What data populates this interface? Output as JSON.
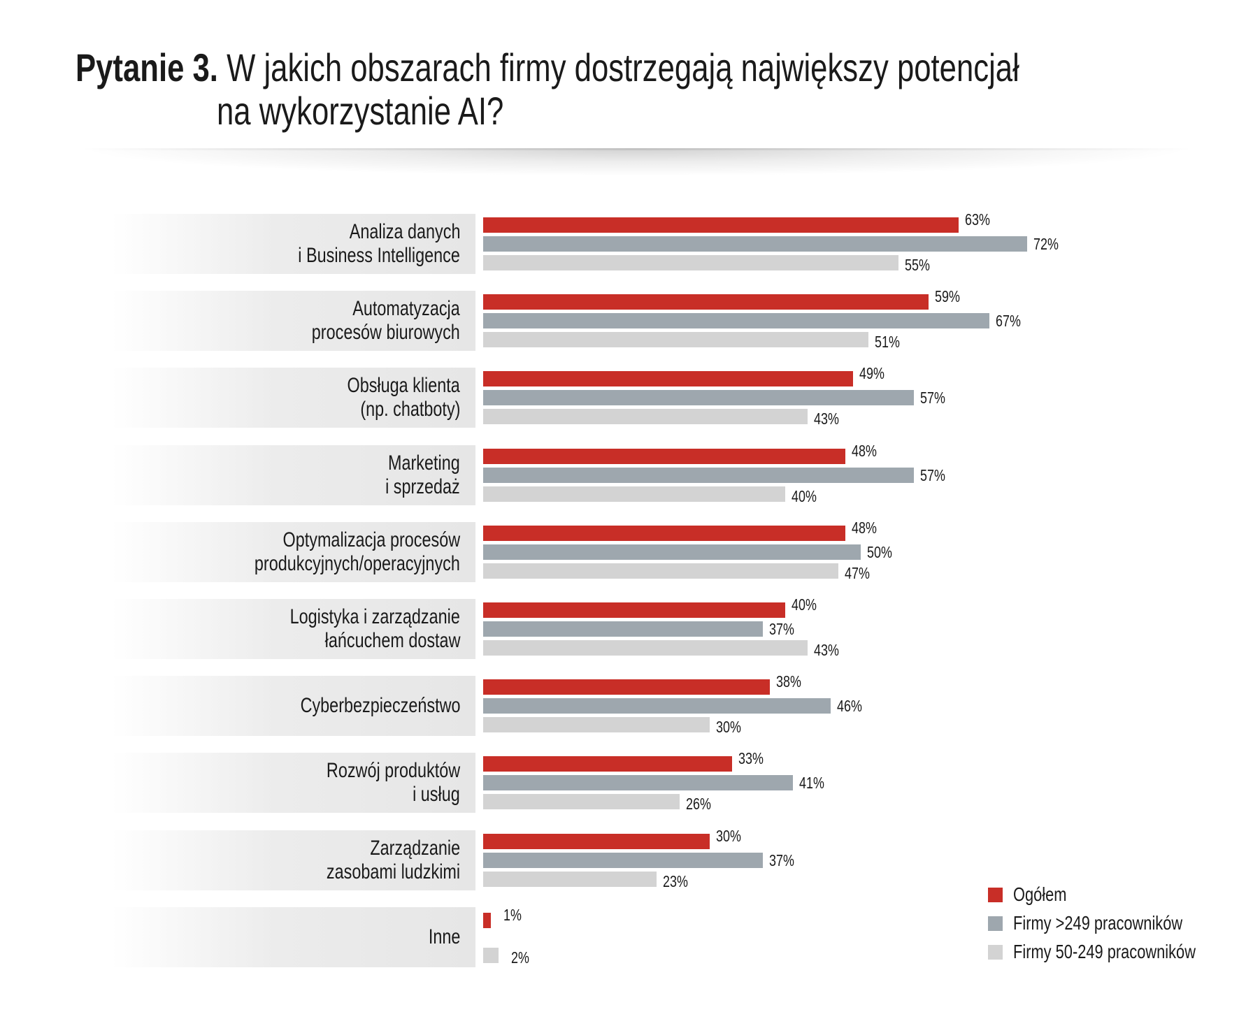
{
  "title": {
    "prefix": "Pytanie 3.",
    "line1": "W jakich obszarach firmy dostrzegają największy potencjał",
    "line2": "na wykorzystanie AI?"
  },
  "colors": {
    "ogolem": "#c82e27",
    "large": "#9ea7ae",
    "medium": "#d3d3d3"
  },
  "chart_data": {
    "type": "bar",
    "orientation": "horizontal",
    "title": "Pytanie 3. W jakich obszarach firmy dostrzegają największy potencjał na wykorzystanie AI?",
    "categories": [
      [
        "Analiza danych",
        "i Business Intelligence"
      ],
      [
        "Automatyzacja",
        "procesów biurowych"
      ],
      [
        "Obsługa klienta",
        "(np. chatboty)"
      ],
      [
        "Marketing",
        "i sprzedaż"
      ],
      [
        "Optymalizacja procesów",
        "produkcyjnych/operacyjnych"
      ],
      [
        "Logistyka i zarządzanie",
        "łańcuchem dostaw"
      ],
      [
        "Cyberbezpieczeństwo"
      ],
      [
        "Rozwój produktów",
        "i usług"
      ],
      [
        "Zarządzanie",
        "zasobami ludzkimi"
      ],
      [
        "Inne"
      ]
    ],
    "series": [
      {
        "name": "Ogółem",
        "color": "#c82e27",
        "values": [
          63,
          59,
          49,
          48,
          48,
          40,
          38,
          33,
          30,
          1
        ]
      },
      {
        "name": "Firmy >249 pracowników",
        "color": "#9ea7ae",
        "values": [
          72,
          67,
          57,
          57,
          50,
          37,
          46,
          41,
          37,
          null
        ]
      },
      {
        "name": "Firmy 50-249 pracowników",
        "color": "#d3d3d3",
        "values": [
          55,
          51,
          43,
          40,
          47,
          43,
          30,
          26,
          23,
          2
        ]
      }
    ],
    "unit": "%",
    "xlim": [
      0,
      100
    ],
    "grid": false,
    "legend_position": "bottom-right"
  }
}
